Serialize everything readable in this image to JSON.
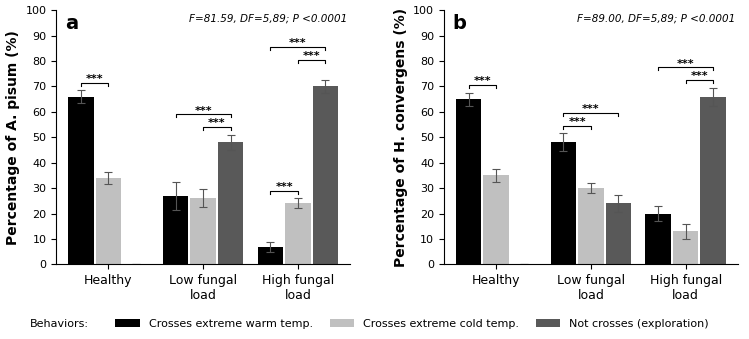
{
  "chart_data": [
    {
      "type": "bar",
      "title": "a",
      "annotation": "F=81.59, DF=5,89; P <0.0001",
      "y_label": "Percentage of A. pisum (%)",
      "categories": [
        "Healthy",
        "Low fungal\nload",
        "High fungal\nload"
      ],
      "series": [
        {
          "name": "Crosses extreme warm temp.",
          "color": "#000000",
          "values": [
            66,
            27,
            7
          ],
          "errors": [
            2.5,
            5.5,
            2
          ]
        },
        {
          "name": "Crosses extreme cold temp.",
          "color": "#c0c0c0",
          "values": [
            34,
            26,
            24
          ],
          "errors": [
            2.5,
            3.5,
            2
          ]
        },
        {
          "name": "Not crosses (exploration)",
          "color": "#595959",
          "values": [
            0,
            48,
            70
          ],
          "errors": [
            0,
            3,
            2.5
          ]
        }
      ],
      "significance": [
        {
          "category": 0,
          "pair": [
            0,
            1
          ],
          "label": "***"
        },
        {
          "category": 1,
          "pair": [
            1,
            2
          ],
          "label": "***"
        },
        {
          "category": 1,
          "pair": [
            0,
            2
          ],
          "label": "***"
        },
        {
          "category": 2,
          "pair": [
            0,
            1
          ],
          "label": "***"
        },
        {
          "category": 2,
          "pair": [
            1,
            2
          ],
          "label": "***"
        },
        {
          "category": 2,
          "pair": [
            0,
            2
          ],
          "label": "***"
        }
      ],
      "ylim": [
        0,
        100
      ],
      "yticks": [
        0,
        10,
        20,
        30,
        40,
        50,
        60,
        70,
        80,
        90,
        100
      ],
      "legend": "lower center"
    },
    {
      "type": "bar",
      "title": "b",
      "annotation": "F=89.00, DF=5,89; P <0.0001",
      "y_label": "Percentage of H. convergens (%)",
      "categories": [
        "Healthy",
        "Low fungal\nload",
        "High fungal\nload"
      ],
      "series": [
        {
          "name": "Crosses extreme warm temp.",
          "color": "#000000",
          "values": [
            65,
            48,
            20
          ],
          "errors": [
            2.5,
            3.5,
            3
          ]
        },
        {
          "name": "Crosses extreme cold temp.",
          "color": "#c0c0c0",
          "values": [
            35,
            30,
            13
          ],
          "errors": [
            2.5,
            2,
            3
          ]
        },
        {
          "name": "Not crosses (exploration)",
          "color": "#595959",
          "values": [
            0,
            24,
            66
          ],
          "errors": [
            0,
            3.5,
            3.5
          ]
        }
      ],
      "significance": [
        {
          "category": 0,
          "pair": [
            0,
            1
          ],
          "label": "***"
        },
        {
          "category": 1,
          "pair": [
            0,
            1
          ],
          "label": "***"
        },
        {
          "category": 1,
          "pair": [
            0,
            2
          ],
          "label": "***"
        },
        {
          "category": 2,
          "pair": [
            1,
            2
          ],
          "label": "***"
        },
        {
          "category": 2,
          "pair": [
            0,
            2
          ],
          "label": "***"
        }
      ],
      "ylim": [
        0,
        100
      ],
      "yticks": [
        0,
        10,
        20,
        30,
        40,
        50,
        60,
        70,
        80,
        90,
        100
      ]
    }
  ],
  "legend_title": "Behaviors:"
}
